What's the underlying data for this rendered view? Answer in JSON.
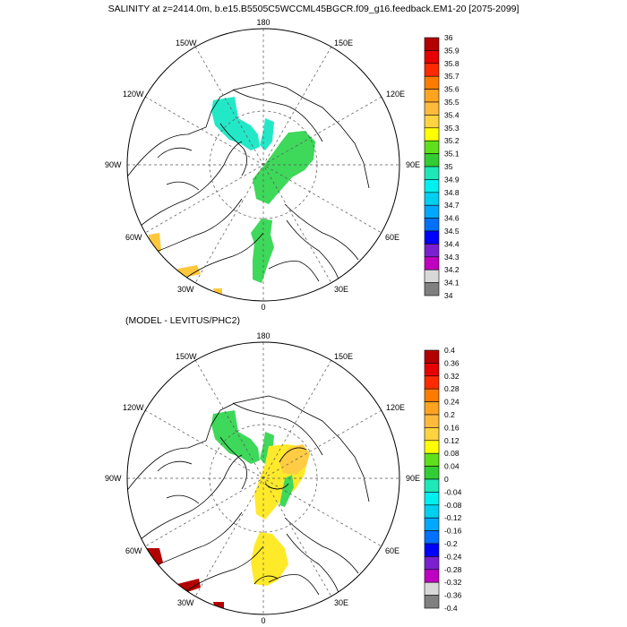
{
  "figure": {
    "title": "SALINITY at z=2414.0m, b.e15.B5505C5WCCML45BGCR.f09_g16.feedback.EM1-20 [2075-2099]",
    "subtitle": "(MODEL - LEVITUS/PHC2)"
  },
  "map_labels": {
    "top": "180",
    "bottom": "0",
    "left": "90W",
    "right": "90E",
    "upper_left": "150W",
    "upper_right": "150E",
    "mid_upper_left": "120W",
    "mid_upper_right": "120E",
    "mid_lower_left": "60W",
    "mid_lower_right": "60E",
    "lower_left": "30W",
    "lower_right": "30E"
  },
  "colorbar_top": {
    "labels": [
      "36",
      "35.9",
      "35.8",
      "35.7",
      "35.6",
      "35.5",
      "35.4",
      "35.3",
      "35.2",
      "35.1",
      "35",
      "34.9",
      "34.8",
      "34.7",
      "34.6",
      "34.5",
      "34.4",
      "34.3",
      "34.2",
      "34.1",
      "34"
    ],
    "colors": [
      "#b30000",
      "#e60000",
      "#ff2a00",
      "#ff7b00",
      "#ffa320",
      "#ffba3c",
      "#ffd23f",
      "#ffff00",
      "#5fe01a",
      "#32cd32",
      "#1ee8b8",
      "#00f0f0",
      "#00d0f0",
      "#00a8ff",
      "#0070ff",
      "#0000ff",
      "#7a20d0",
      "#c000c0",
      "#d8d8d8",
      "#808080"
    ]
  },
  "colorbar_bottom": {
    "labels": [
      "0.4",
      "0.36",
      "0.32",
      "0.28",
      "0.24",
      "0.2",
      "0.16",
      "0.12",
      "0.08",
      "0.04",
      "0",
      "-0.04",
      "-0.08",
      "-0.12",
      "-0.16",
      "-0.2",
      "-0.24",
      "-0.28",
      "-0.32",
      "-0.36",
      "-0.4"
    ],
    "colors": [
      "#b30000",
      "#e60000",
      "#ff2a00",
      "#ff7b00",
      "#ffa320",
      "#ffba3c",
      "#ffd23f",
      "#ffff00",
      "#5fe01a",
      "#32cd32",
      "#1ee8b8",
      "#00f0f0",
      "#00d0f0",
      "#00a8ff",
      "#0070ff",
      "#0000ff",
      "#7a20d0",
      "#c000c0",
      "#d8d8d8",
      "#808080"
    ]
  },
  "colors": {
    "top_field_cyan": "#22e8c8",
    "top_field_green": "#3ed85a",
    "top_field_orange": "#ffc83c",
    "bottom_field_green": "#3ed85a",
    "bottom_field_yellow": "#ffea2a",
    "bottom_field_orange": "#ffcc44",
    "bottom_field_darkred": "#b30000"
  }
}
